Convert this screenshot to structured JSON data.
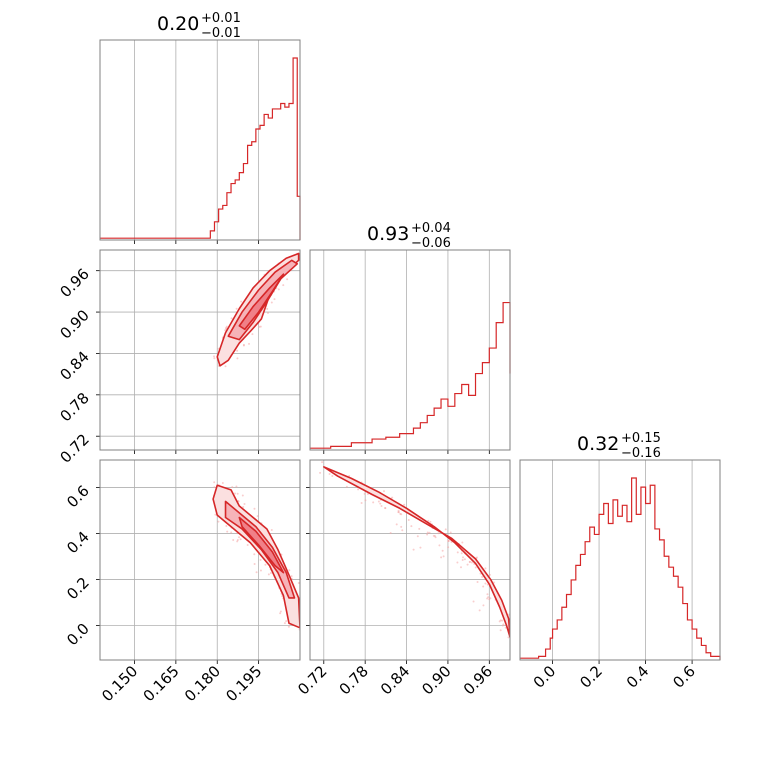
{
  "chart_data": [
    {
      "type": "histogram",
      "title": {
        "value": "0.20",
        "upper": "+0.01",
        "lower": "−0.01"
      },
      "xlim": [
        0.1375,
        0.21
      ],
      "x_ticks": [
        0.15,
        0.165,
        0.18,
        0.195
      ],
      "x_tick_labels": [
        "0.150",
        "0.165",
        "0.180",
        "0.195"
      ],
      "bin_edges": [
        0.1375,
        0.1775,
        0.179,
        0.1805,
        0.182,
        0.1835,
        0.185,
        0.1865,
        0.188,
        0.1895,
        0.191,
        0.1925,
        0.194,
        0.1955,
        0.197,
        0.1985,
        0.2,
        0.2015,
        0.203,
        0.2045,
        0.206,
        0.2075,
        0.209,
        0.21
      ],
      "counts": [
        0.01,
        0.05,
        0.1,
        0.17,
        0.19,
        0.26,
        0.31,
        0.33,
        0.37,
        0.42,
        0.52,
        0.54,
        0.61,
        0.63,
        0.69,
        0.67,
        0.72,
        0.72,
        0.75,
        0.73,
        0.75,
        1.0,
        0.24
      ],
      "color": "#d62728"
    },
    {
      "type": "histogram",
      "title": {
        "value": "0.93",
        "upper": "+0.04",
        "lower": "−0.06"
      },
      "xlim": [
        0.7,
        0.99
      ],
      "x_ticks": [
        0.72,
        0.78,
        0.84,
        0.9,
        0.96
      ],
      "x_tick_labels": [
        "0.72",
        "0.78",
        "0.84",
        "0.90",
        "0.96"
      ],
      "bin_edges": [
        0.7,
        0.73,
        0.76,
        0.79,
        0.81,
        0.83,
        0.85,
        0.86,
        0.87,
        0.88,
        0.89,
        0.9,
        0.91,
        0.92,
        0.93,
        0.94,
        0.95,
        0.96,
        0.97,
        0.98,
        0.99
      ],
      "counts": [
        0.01,
        0.02,
        0.04,
        0.06,
        0.07,
        0.09,
        0.12,
        0.15,
        0.19,
        0.23,
        0.28,
        0.24,
        0.31,
        0.36,
        0.3,
        0.42,
        0.48,
        0.56,
        0.7,
        0.81,
        0.42
      ],
      "color": "#d62728"
    },
    {
      "type": "histogram",
      "title": {
        "value": "0.32",
        "upper": "+0.15",
        "lower": "−0.16"
      },
      "xlim": [
        -0.14,
        0.72
      ],
      "x_ticks": [
        0.0,
        0.2,
        0.4,
        0.6
      ],
      "x_tick_labels": [
        "0.0",
        "0.2",
        "0.4",
        "0.6"
      ],
      "bin_edges": [
        -0.14,
        -0.06,
        -0.03,
        -0.01,
        0.0,
        0.02,
        0.04,
        0.06,
        0.08,
        0.1,
        0.12,
        0.14,
        0.16,
        0.18,
        0.2,
        0.22,
        0.24,
        0.26,
        0.28,
        0.3,
        0.32,
        0.34,
        0.36,
        0.38,
        0.4,
        0.42,
        0.44,
        0.46,
        0.48,
        0.5,
        0.52,
        0.54,
        0.56,
        0.58,
        0.6,
        0.62,
        0.64,
        0.66,
        0.68,
        0.72
      ],
      "counts": [
        0.01,
        0.02,
        0.06,
        0.12,
        0.17,
        0.22,
        0.29,
        0.36,
        0.44,
        0.52,
        0.58,
        0.65,
        0.73,
        0.69,
        0.8,
        0.86,
        0.75,
        0.88,
        0.79,
        0.85,
        0.76,
        1.0,
        0.8,
        0.95,
        0.86,
        0.96,
        0.72,
        0.66,
        0.57,
        0.51,
        0.46,
        0.4,
        0.31,
        0.22,
        0.17,
        0.12,
        0.08,
        0.04,
        0.02
      ],
      "color": "#d62728"
    },
    {
      "type": "contour",
      "description_keys": [
        "x",
        "y"
      ],
      "xlim": [
        0.1375,
        0.21
      ],
      "ylim": [
        0.7,
        0.99
      ],
      "x_ticks": [
        0.15,
        0.165,
        0.18,
        0.195
      ],
      "y_ticks": [
        0.72,
        0.78,
        0.84,
        0.9,
        0.96
      ],
      "y_tick_labels": [
        "0.72",
        "0.78",
        "0.84",
        "0.90",
        "0.96"
      ],
      "contours": [
        [
          [
            0.18,
            0.835
          ],
          [
            0.183,
            0.87
          ],
          [
            0.188,
            0.905
          ],
          [
            0.193,
            0.935
          ],
          [
            0.199,
            0.96
          ],
          [
            0.205,
            0.978
          ],
          [
            0.2095,
            0.985
          ],
          [
            0.2095,
            0.975
          ],
          [
            0.204,
            0.955
          ],
          [
            0.199,
            0.925
          ],
          [
            0.196,
            0.89
          ],
          [
            0.192,
            0.872
          ],
          [
            0.188,
            0.855
          ],
          [
            0.184,
            0.83
          ],
          [
            0.181,
            0.822
          ]
        ],
        [
          [
            0.184,
            0.865
          ],
          [
            0.189,
            0.9
          ],
          [
            0.195,
            0.932
          ],
          [
            0.201,
            0.958
          ],
          [
            0.207,
            0.975
          ],
          [
            0.209,
            0.97
          ],
          [
            0.203,
            0.948
          ],
          [
            0.198,
            0.915
          ],
          [
            0.193,
            0.885
          ],
          [
            0.188,
            0.86
          ]
        ],
        [
          [
            0.188,
            0.88
          ],
          [
            0.193,
            0.908
          ],
          [
            0.199,
            0.935
          ],
          [
            0.204,
            0.955
          ],
          [
            0.2,
            0.93
          ],
          [
            0.195,
            0.9
          ],
          [
            0.19,
            0.875
          ]
        ]
      ],
      "color": "#d62728"
    },
    {
      "type": "contour",
      "xlim": [
        0.1375,
        0.21
      ],
      "ylim": [
        -0.15,
        0.72
      ],
      "x_ticks": [
        0.15,
        0.165,
        0.18,
        0.195
      ],
      "y_ticks": [
        0.0,
        0.2,
        0.4,
        0.6
      ],
      "y_tick_labels": [
        "0.0",
        "0.2",
        "0.4",
        "0.6"
      ],
      "contours": [
        [
          [
            0.18,
            0.61
          ],
          [
            0.185,
            0.59
          ],
          [
            0.188,
            0.52
          ],
          [
            0.193,
            0.47
          ],
          [
            0.198,
            0.42
          ],
          [
            0.202,
            0.33
          ],
          [
            0.206,
            0.22
          ],
          [
            0.2095,
            0.12
          ],
          [
            0.21,
            -0.01
          ],
          [
            0.206,
            0.01
          ],
          [
            0.204,
            0.13
          ],
          [
            0.199,
            0.26
          ],
          [
            0.192,
            0.36
          ],
          [
            0.185,
            0.43
          ],
          [
            0.18,
            0.48
          ],
          [
            0.1785,
            0.55
          ]
        ],
        [
          [
            0.183,
            0.54
          ],
          [
            0.188,
            0.49
          ],
          [
            0.194,
            0.43
          ],
          [
            0.2,
            0.34
          ],
          [
            0.205,
            0.23
          ],
          [
            0.208,
            0.12
          ],
          [
            0.206,
            0.12
          ],
          [
            0.202,
            0.23
          ],
          [
            0.196,
            0.33
          ],
          [
            0.189,
            0.42
          ],
          [
            0.183,
            0.47
          ]
        ],
        [
          [
            0.188,
            0.47
          ],
          [
            0.194,
            0.41
          ],
          [
            0.2,
            0.32
          ],
          [
            0.204,
            0.23
          ],
          [
            0.201,
            0.26
          ],
          [
            0.195,
            0.35
          ],
          [
            0.189,
            0.43
          ]
        ]
      ],
      "color": "#d62728"
    },
    {
      "type": "contour",
      "xlim": [
        0.7,
        0.99
      ],
      "ylim": [
        -0.15,
        0.72
      ],
      "x_ticks": [
        0.72,
        0.78,
        0.84,
        0.9,
        0.96
      ],
      "x_tick_labels": [
        "0.72",
        "0.78",
        "0.84",
        "0.90",
        "0.96"
      ],
      "y_ticks": [
        0.0,
        0.2,
        0.4,
        0.6
      ],
      "contours": [
        [
          [
            0.72,
            0.69
          ],
          [
            0.76,
            0.64
          ],
          [
            0.8,
            0.58
          ],
          [
            0.84,
            0.51
          ],
          [
            0.88,
            0.43
          ],
          [
            0.91,
            0.36
          ],
          [
            0.94,
            0.27
          ],
          [
            0.96,
            0.18
          ],
          [
            0.975,
            0.08
          ],
          [
            0.985,
            0.0
          ],
          [
            0.99,
            -0.05
          ],
          [
            0.988,
            0.03
          ],
          [
            0.978,
            0.11
          ],
          [
            0.962,
            0.2
          ],
          [
            0.94,
            0.29
          ],
          [
            0.905,
            0.38
          ],
          [
            0.87,
            0.44
          ],
          [
            0.83,
            0.51
          ],
          [
            0.79,
            0.57
          ],
          [
            0.74,
            0.65
          ]
        ]
      ],
      "color": "#d62728"
    }
  ]
}
